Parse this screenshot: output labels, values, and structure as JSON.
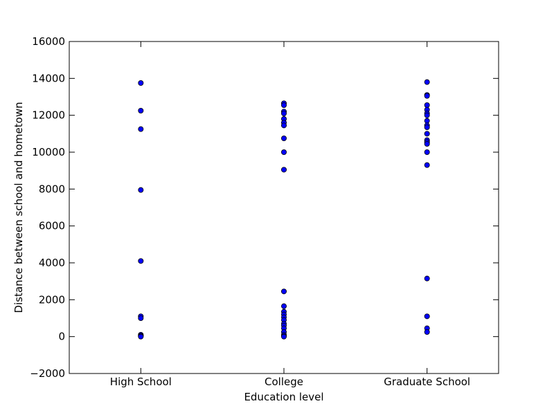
{
  "chart_data": {
    "type": "scatter",
    "title": "",
    "xlabel": "Education level",
    "ylabel": "Distance between school and hometown",
    "categories": [
      "High School",
      "College",
      "Graduate School"
    ],
    "ylim": [
      -2000,
      16000
    ],
    "yticks": [
      -2000,
      0,
      2000,
      4000,
      6000,
      8000,
      10000,
      12000,
      14000,
      16000
    ],
    "grid": false,
    "marker_color": "#0000ff",
    "marker_edge_color": "#000000",
    "series": [
      {
        "category": "High School",
        "values": [
          13750,
          12250,
          11250,
          7950,
          4100,
          1100,
          1000,
          100,
          50,
          30,
          0
        ]
      },
      {
        "category": "College",
        "values": [
          12650,
          12550,
          12200,
          12100,
          11800,
          11600,
          11450,
          10750,
          10000,
          9050,
          2450,
          1650,
          1350,
          1200,
          1050,
          900,
          700,
          600,
          450,
          250,
          100,
          30,
          0
        ]
      },
      {
        "category": "Graduate School",
        "values": [
          13800,
          13100,
          13050,
          12550,
          12300,
          12100,
          12000,
          11700,
          11450,
          11350,
          11000,
          10650,
          10550,
          10450,
          10000,
          9300,
          3150,
          1100,
          450,
          250
        ]
      }
    ]
  }
}
